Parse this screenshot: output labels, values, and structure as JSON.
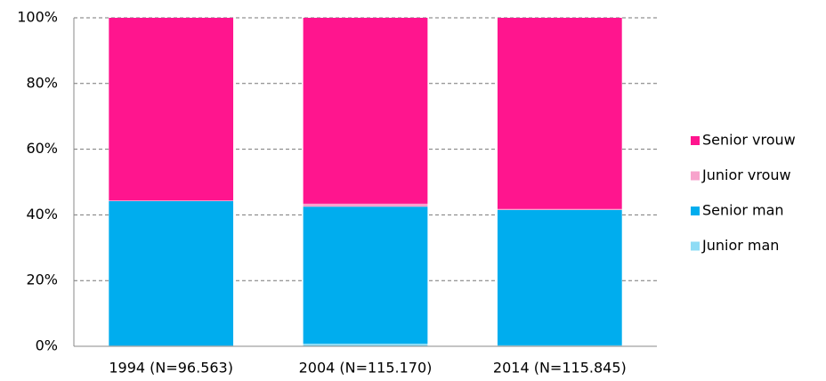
{
  "chart_data": {
    "type": "stacked_bar",
    "categories": [
      "1994 (N=96.563)",
      "2004 (N=115.170)",
      "2014 (N=115.845)"
    ],
    "series": [
      {
        "name": "Junior man",
        "color": "#8fdcf5",
        "values": [
          0.2,
          0.8,
          0.3
        ]
      },
      {
        "name": "Senior man",
        "color": "#00adee",
        "values": [
          44.0,
          41.7,
          41.2
        ]
      },
      {
        "name": "Junior vrouw",
        "color": "#f7a3cc",
        "values": [
          0.2,
          0.9,
          0.3
        ]
      },
      {
        "name": "Senior vrouw",
        "color": "#ff158e",
        "values": [
          55.6,
          56.6,
          58.2
        ]
      }
    ],
    "ylim": [
      0,
      100
    ],
    "yticks": [
      {
        "value": 0,
        "label": "0%"
      },
      {
        "value": 20,
        "label": "20%"
      },
      {
        "value": 40,
        "label": "40%"
      },
      {
        "value": 60,
        "label": "60%"
      },
      {
        "value": 80,
        "label": "80%"
      },
      {
        "value": 100,
        "label": "100%"
      }
    ],
    "grid": true,
    "legend": "right"
  }
}
